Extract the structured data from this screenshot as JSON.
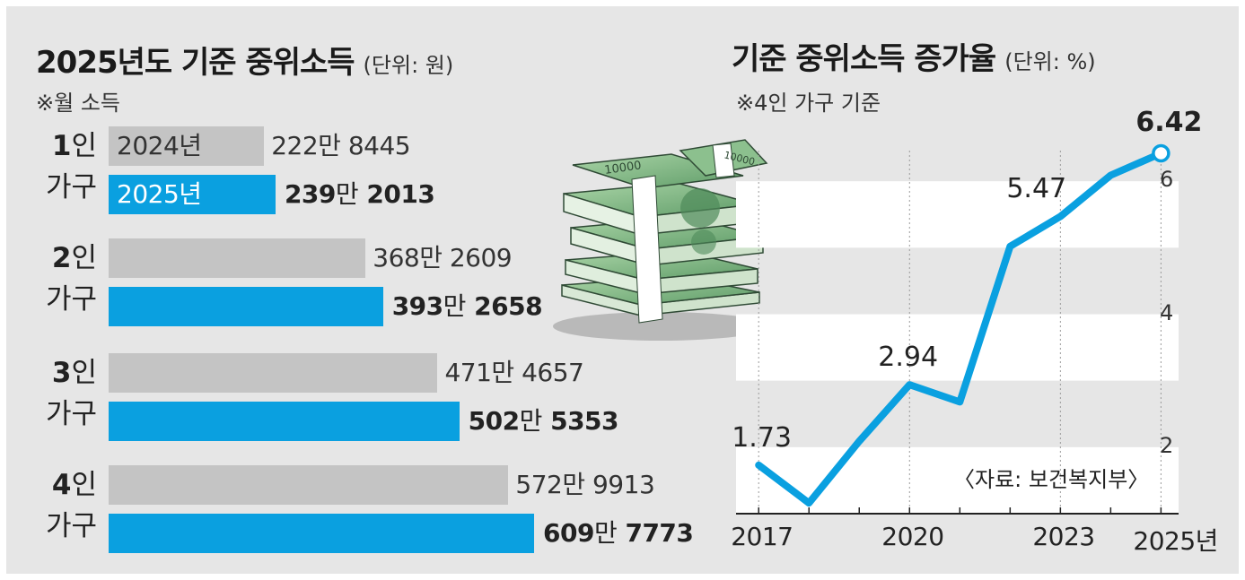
{
  "left_chart": {
    "title": "2025년도 기준 중위소득",
    "unit": "(단위: 원)",
    "note": "※월 소득",
    "legend_prev": "2024년",
    "legend_curr": "2025년",
    "groups": [
      {
        "num": "1",
        "suffix": "인",
        "line2": "가구",
        "prev_text": "222만 8445",
        "curr_num": "239",
        "curr_man": "만",
        "curr_rest": "2013"
      },
      {
        "num": "2",
        "suffix": "인",
        "line2": "가구",
        "prev_text": "368만 2609",
        "curr_num": "393",
        "curr_man": "만",
        "curr_rest": "2658"
      },
      {
        "num": "3",
        "suffix": "인",
        "line2": "가구",
        "prev_text": "471만 4657",
        "curr_num": "502",
        "curr_man": "만",
        "curr_rest": "5353"
      },
      {
        "num": "4",
        "suffix": "인",
        "line2": "가구",
        "prev_text": "572만 9913",
        "curr_num": "609",
        "curr_man": "만",
        "curr_rest": "7773"
      }
    ]
  },
  "right_chart": {
    "title": "기준 중위소득 증가율",
    "unit": "(단위: %)",
    "note": "※4인 가구 기준",
    "source": "〈자료: 보건복지부〉",
    "x_labels": [
      "2017",
      "2020",
      "2023",
      "2025년"
    ],
    "y_ticks": [
      "2",
      "4",
      "6"
    ],
    "point_labels": [
      "1.73",
      "2.94",
      "5.47",
      "6.42"
    ]
  },
  "illustration": {
    "icon": "money-stack-icon",
    "note_text": "10000"
  },
  "colors": {
    "current": "#0aa0e0",
    "previous": "#c4c4c4",
    "background": "#e6e6e6",
    "note_green": "#7fb886"
  },
  "chart_data": [
    {
      "type": "bar",
      "title": "2025년도 기준 중위소득",
      "unit": "원",
      "categories": [
        "1인 가구",
        "2인 가구",
        "3인 가구",
        "4인 가구"
      ],
      "series": [
        {
          "name": "2024년",
          "values": [
            2228445,
            3682609,
            4714657,
            5729913
          ]
        },
        {
          "name": "2025년",
          "values": [
            2392013,
            3932658,
            5025353,
            6097773
          ]
        }
      ],
      "orientation": "horizontal"
    },
    {
      "type": "line",
      "title": "기준 중위소득 증가율",
      "unit": "%",
      "x": [
        2017,
        2018,
        2019,
        2020,
        2021,
        2022,
        2023,
        2024,
        2025
      ],
      "series": [
        {
          "values": [
            1.73,
            1.16,
            2.09,
            2.94,
            2.68,
            5.02,
            5.47,
            6.09,
            6.42
          ]
        }
      ],
      "labeled_points": {
        "2017": 1.73,
        "2020": 2.94,
        "2023": 5.47,
        "2025": 6.42
      },
      "ylim": [
        1,
        7
      ],
      "y_ticks": [
        2,
        4,
        6
      ],
      "grid": "horizontal bands"
    }
  ]
}
